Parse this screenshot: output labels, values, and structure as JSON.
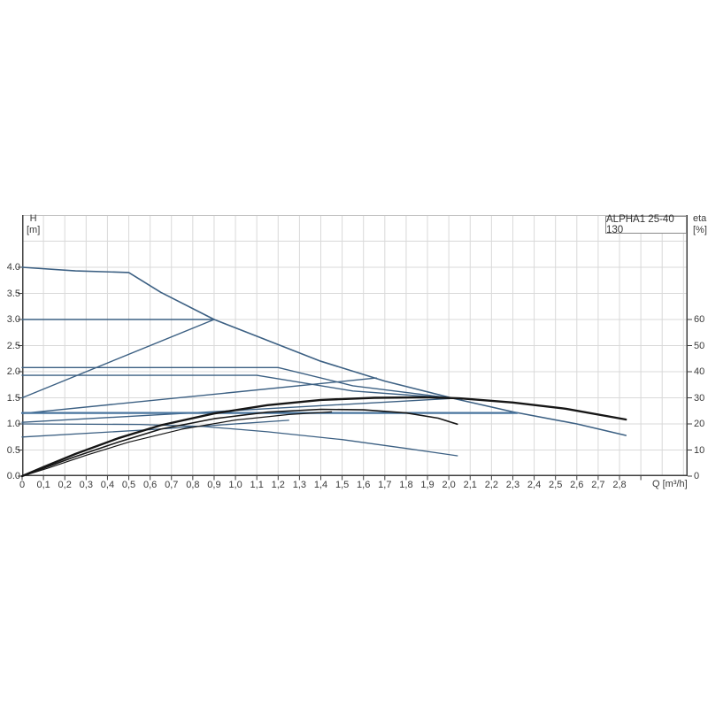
{
  "page": {
    "background": "#ffffff"
  },
  "header": {
    "title_box_label": "ALPHA1 25-40 130"
  },
  "axes_text": {
    "left_axis_name": "H",
    "left_axis_unit": "[m]",
    "right_axis_name": "eta",
    "right_axis_unit": "[%]",
    "x_axis_unit_label": "Q [m³/h]"
  },
  "colors": {
    "grid": "#d9d9d9",
    "plot_top_border": "#c4c4c4",
    "axis_dark": "#3f3f3f",
    "curve_blue": "#3c6083",
    "curve_blue_bold": "#49759e",
    "curve_black": "#161616",
    "text": "#3a3a3a",
    "title_box_border": "#8a8a8a"
  },
  "chart_data": {
    "type": "line",
    "title": "ALPHA1 25-40 130",
    "xlabel": "Q [m³/h]",
    "ylabel_left": "H [m]",
    "ylabel_right": "eta [%]",
    "x_range": [
      0,
      3.12
    ],
    "h_range": [
      0,
      5.0
    ],
    "eta_range": [
      0,
      100
    ],
    "grid": {
      "x_step": 0.1,
      "h_step": 0.5
    },
    "x_tick_labels": [
      "0",
      "0,1",
      "0,2",
      "0,3",
      "0,4",
      "0,5",
      "0,6",
      "0,7",
      "0,8",
      "0,9",
      "1,0",
      "1,1",
      "1,2",
      "1,3",
      "1,4",
      "1,5",
      "1,6",
      "1,7",
      "1,8",
      "1,9",
      "2,0",
      "2,1",
      "2,2",
      "2,3",
      "2,4",
      "2,5",
      "2,6",
      "2,7",
      "2,8"
    ],
    "x_tick_step": 0.1,
    "extra_unlabeled_x_ticks": [
      2.9
    ],
    "left_tick_labels": [
      "0.0",
      "0.5",
      "1.0",
      "1.5",
      "2.0",
      "2.5",
      "3.0",
      "3.5",
      "4.0"
    ],
    "left_tick_step_m": 0.5,
    "right_tick_labels": [
      "0",
      "10",
      "20",
      "30",
      "40",
      "50",
      "60"
    ],
    "right_tick_step_pct": 10,
    "legend_position": "none",
    "series": [
      {
        "name": "max-speed-curve",
        "axis": "H",
        "color": "blue",
        "width": 1.6,
        "points": [
          [
            0,
            4.0
          ],
          [
            0.25,
            3.93
          ],
          [
            0.5,
            3.9
          ],
          [
            0.65,
            3.52
          ],
          [
            0.9,
            3.0
          ],
          [
            1.15,
            2.6
          ],
          [
            1.4,
            2.2
          ],
          [
            1.7,
            1.82
          ],
          [
            2.02,
            1.49
          ],
          [
            2.3,
            1.23
          ],
          [
            2.6,
            1.0
          ],
          [
            2.83,
            0.78
          ]
        ]
      },
      {
        "name": "constant-pressure-3.0",
        "axis": "H",
        "color": "blue",
        "width": 1.4,
        "points": [
          [
            0,
            3.0
          ],
          [
            0.9,
            3.0
          ]
        ]
      },
      {
        "name": "proportional-pressure-3.0",
        "axis": "H",
        "color": "blue",
        "width": 1.4,
        "points": [
          [
            0,
            1.5
          ],
          [
            0.9,
            3.0
          ]
        ]
      },
      {
        "name": "constant-pressure-2.1",
        "axis": "H",
        "color": "blue",
        "width": 1.4,
        "points": [
          [
            0,
            2.08
          ],
          [
            1.2,
            2.08
          ],
          [
            1.55,
            1.73
          ],
          [
            2.02,
            1.49
          ]
        ]
      },
      {
        "name": "constant-pressure-1.95",
        "axis": "H",
        "color": "blue",
        "width": 1.4,
        "points": [
          [
            0,
            1.93
          ],
          [
            1.1,
            1.93
          ],
          [
            1.55,
            1.63
          ],
          [
            2.02,
            1.49
          ]
        ]
      },
      {
        "name": "proportional-pressure-mid",
        "axis": "H",
        "color": "blue",
        "width": 1.4,
        "points": [
          [
            0,
            1.2
          ],
          [
            1.66,
            1.88
          ]
        ]
      },
      {
        "name": "proportional-pressure-shallow",
        "axis": "H",
        "color": "blue",
        "width": 1.4,
        "points": [
          [
            0,
            1.03
          ],
          [
            2.02,
            1.49
          ]
        ]
      },
      {
        "name": "constant-pressure-1.2",
        "axis": "H",
        "color": "blue_bold",
        "width": 2.2,
        "points": [
          [
            0,
            1.21
          ],
          [
            2.32,
            1.21
          ]
        ]
      },
      {
        "name": "speed-ii-curve",
        "axis": "H",
        "color": "blue",
        "width": 1.3,
        "points": [
          [
            0,
            1.0
          ],
          [
            0.55,
            0.99
          ],
          [
            0.85,
            0.95
          ],
          [
            1.15,
            0.85
          ],
          [
            1.5,
            0.7
          ],
          [
            1.8,
            0.53
          ],
          [
            2.04,
            0.39
          ]
        ]
      },
      {
        "name": "proportional-pressure-low",
        "axis": "H",
        "color": "blue",
        "width": 1.3,
        "points": [
          [
            0,
            0.75
          ],
          [
            0.6,
            0.89
          ],
          [
            1.25,
            1.07
          ]
        ]
      },
      {
        "name": "efficiency-max-curve",
        "axis": "eta",
        "color": "black",
        "width": 2.4,
        "points": [
          [
            0,
            0
          ],
          [
            0.1,
            3.5
          ],
          [
            0.25,
            8.5
          ],
          [
            0.45,
            14.5
          ],
          [
            0.65,
            19.5
          ],
          [
            0.9,
            24
          ],
          [
            1.15,
            27.2
          ],
          [
            1.4,
            29.2
          ],
          [
            1.65,
            30
          ],
          [
            1.9,
            30.2
          ],
          [
            2.05,
            29.8
          ],
          [
            2.3,
            28.2
          ],
          [
            2.55,
            25.8
          ],
          [
            2.83,
            21.7
          ]
        ]
      },
      {
        "name": "efficiency-speed-ii-curve",
        "axis": "eta",
        "color": "black",
        "width": 1.6,
        "points": [
          [
            0,
            0
          ],
          [
            0.1,
            3
          ],
          [
            0.25,
            7.5
          ],
          [
            0.45,
            13
          ],
          [
            0.65,
            18
          ],
          [
            0.9,
            22
          ],
          [
            1.15,
            24.5
          ],
          [
            1.4,
            25.6
          ],
          [
            1.6,
            25.4
          ],
          [
            1.8,
            24.2
          ],
          [
            1.95,
            22.2
          ],
          [
            2.04,
            19.9
          ]
        ]
      },
      {
        "name": "efficiency-lower-curve",
        "axis": "eta",
        "color": "black",
        "width": 1.2,
        "points": [
          [
            0,
            0
          ],
          [
            0.12,
            3
          ],
          [
            0.3,
            8
          ],
          [
            0.5,
            13
          ],
          [
            0.75,
            18
          ],
          [
            1.0,
            21.5
          ],
          [
            1.25,
            23.6
          ],
          [
            1.45,
            24.6
          ]
        ]
      }
    ]
  }
}
